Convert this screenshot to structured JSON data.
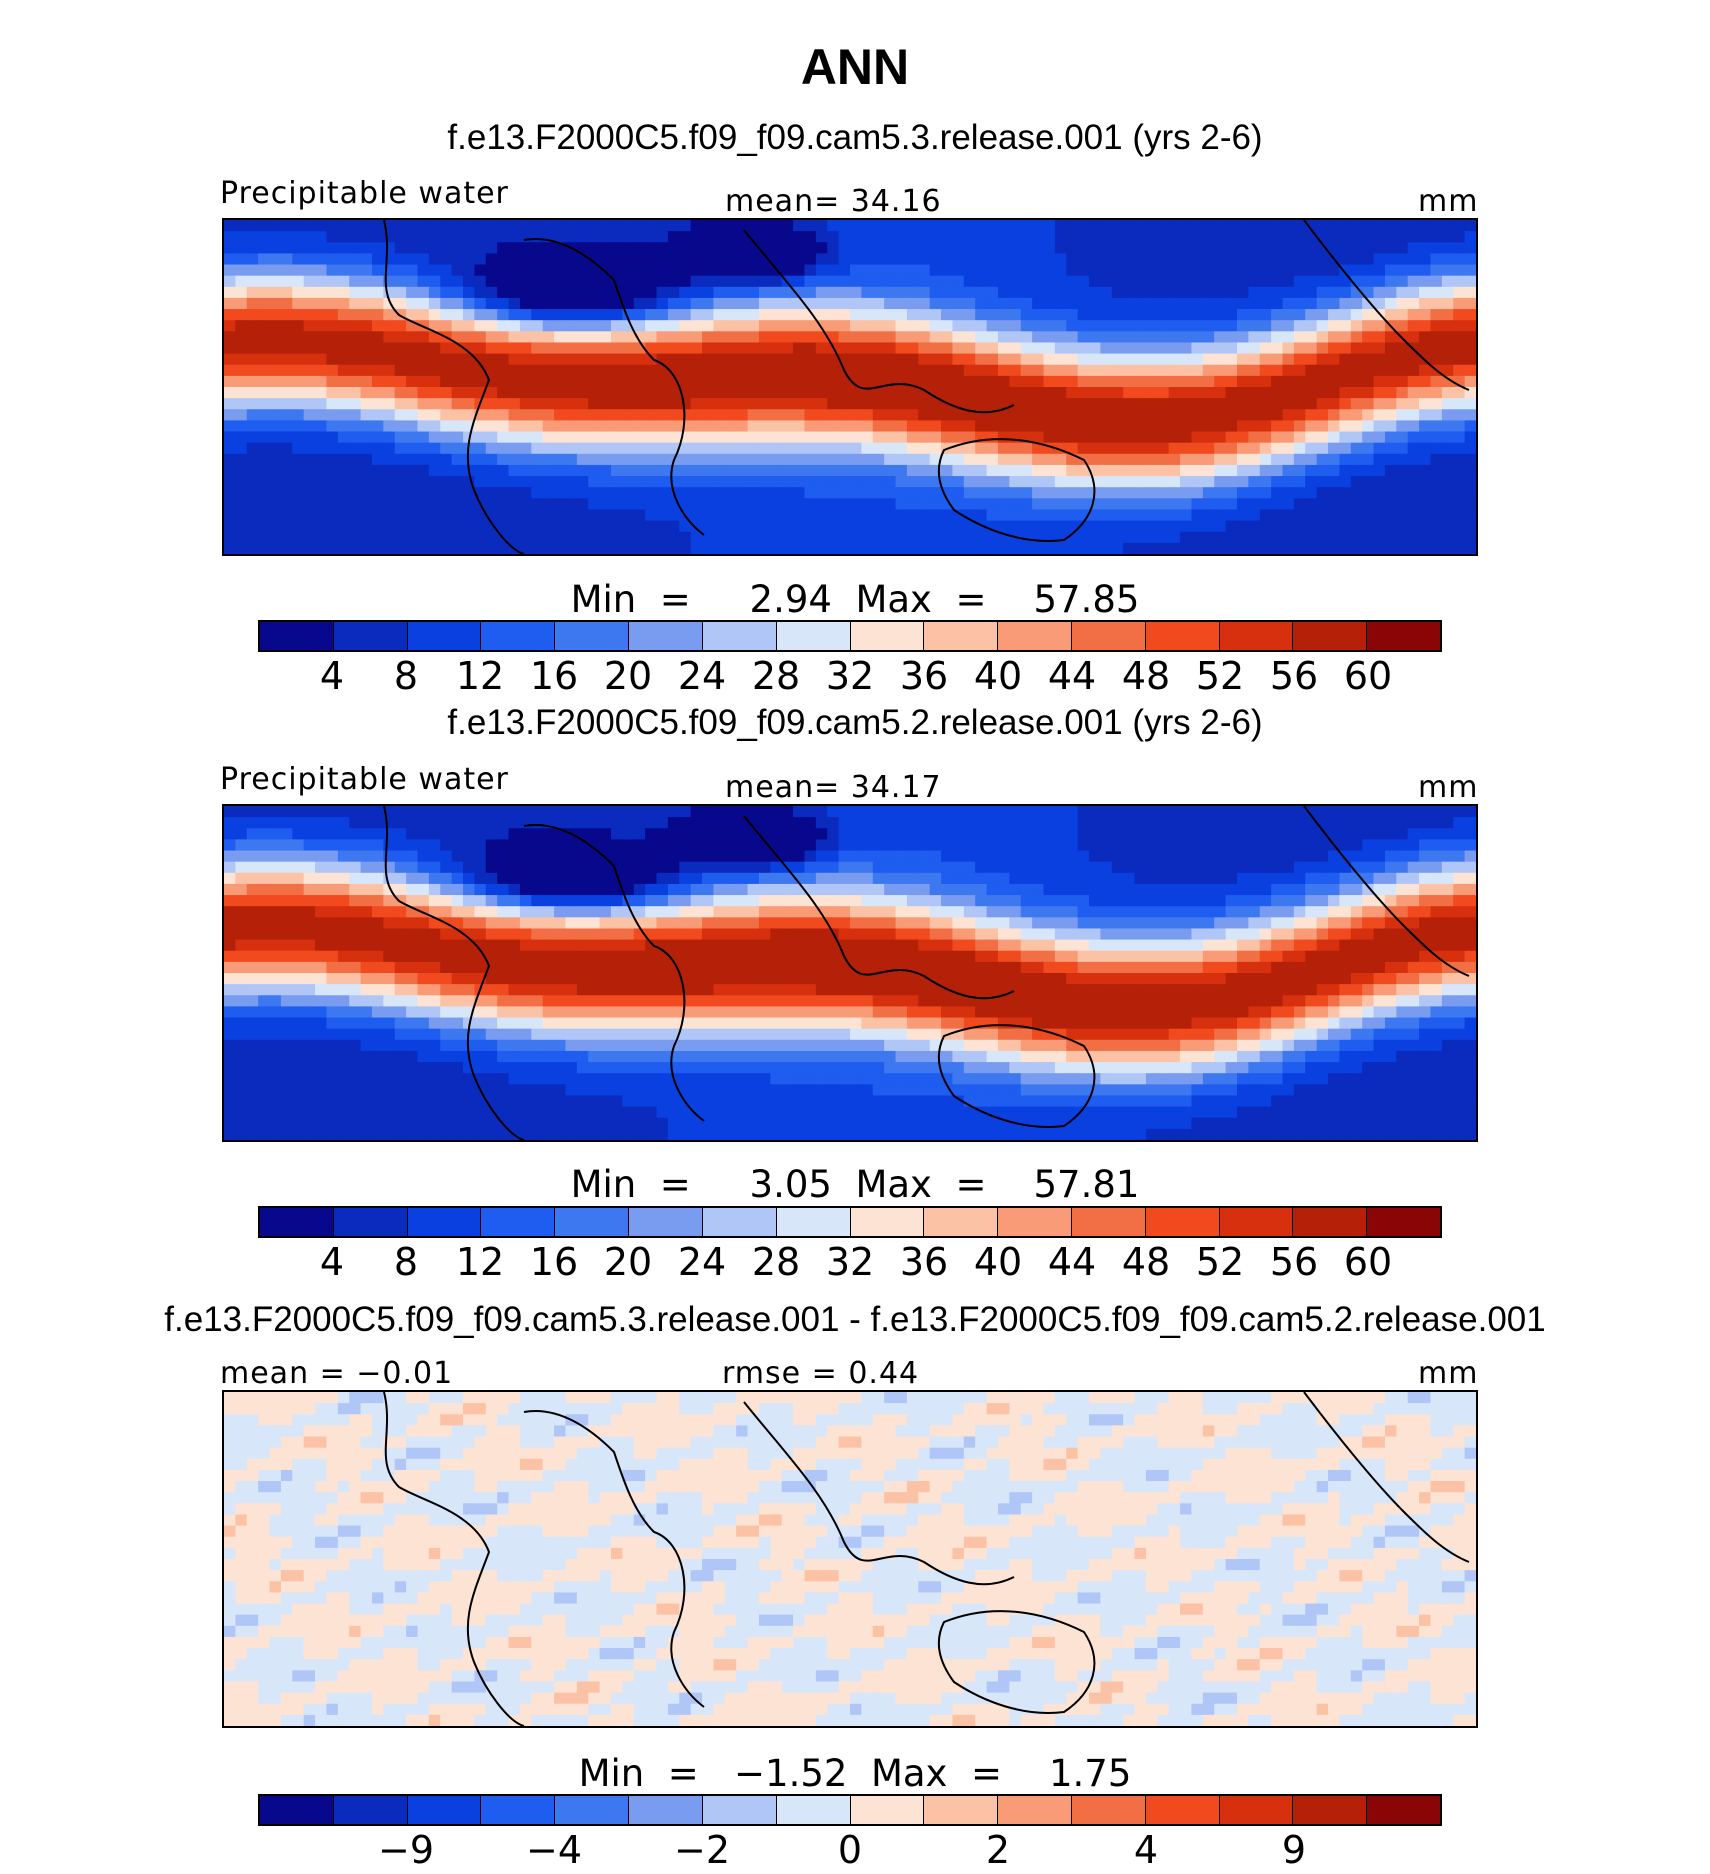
{
  "page": {
    "title": "ANN"
  },
  "colorbar_abs": {
    "colors": [
      "#08088c",
      "#0a2bbe",
      "#0a40e0",
      "#1f5cf0",
      "#3d78f0",
      "#7a9cf0",
      "#b0c6f7",
      "#d8e6fa",
      "#fde3d3",
      "#fbc2a6",
      "#f89b76",
      "#f26f45",
      "#f04a1e",
      "#d7300e",
      "#b42008",
      "#8a0505"
    ],
    "ticks": [
      "4",
      "8",
      "12",
      "16",
      "20",
      "24",
      "28",
      "32",
      "36",
      "40",
      "44",
      "48",
      "52",
      "56",
      "60"
    ]
  },
  "colorbar_diff": {
    "colors": [
      "#08088c",
      "#0a2bbe",
      "#0a40e0",
      "#1f5cf0",
      "#3d78f0",
      "#7a9cf0",
      "#b0c6f7",
      "#d8e6fa",
      "#fde3d3",
      "#fbc2a6",
      "#f89b76",
      "#f26f45",
      "#f04a1e",
      "#d7300e",
      "#b42008",
      "#8a0505"
    ],
    "ticks": [
      {
        "label": "−9",
        "boundary": 2
      },
      {
        "label": "−4",
        "boundary": 4
      },
      {
        "label": "−2",
        "boundary": 6
      },
      {
        "label": "0",
        "boundary": 8
      },
      {
        "label": "2",
        "boundary": 10
      },
      {
        "label": "4",
        "boundary": 12
      },
      {
        "label": "9",
        "boundary": 14
      }
    ]
  },
  "chart_data": [
    {
      "type": "heatmap",
      "title": "f.e13.F2000C5.f09_f09.cam5.3.release.001 (yrs 2-6)",
      "left_label": "Precipitable water",
      "center_label": "mean=  34.16",
      "right_label": "mm",
      "mean": 34.16,
      "min": 2.94,
      "max": 57.85,
      "stats_text": "Min  =     2.94  Max  =    57.85",
      "levels": [
        4,
        8,
        12,
        16,
        20,
        24,
        28,
        32,
        36,
        40,
        44,
        48,
        52,
        56,
        60
      ]
    },
    {
      "type": "heatmap",
      "title": "f.e13.F2000C5.f09_f09.cam5.2.release.001 (yrs 2-6)",
      "left_label": "Precipitable water",
      "center_label": "mean=  34.17",
      "right_label": "mm",
      "mean": 34.17,
      "min": 3.05,
      "max": 57.81,
      "stats_text": "Min  =     3.05  Max  =    57.81",
      "levels": [
        4,
        8,
        12,
        16,
        20,
        24,
        28,
        32,
        36,
        40,
        44,
        48,
        52,
        56,
        60
      ]
    },
    {
      "type": "heatmap",
      "title": "f.e13.F2000C5.f09_f09.cam5.3.release.001 - f.e13.F2000C5.f09_f09.cam5.2.release.001",
      "left_label": "mean =  −0.01",
      "center_label": "rmse =    0.44",
      "right_label": "mm",
      "mean": -0.01,
      "rmse": 0.44,
      "min": -1.52,
      "max": 1.75,
      "stats_text": "Min  =   −1.52  Max  =    1.75",
      "levels": [
        -9,
        -4,
        -2,
        0,
        2,
        4,
        9
      ]
    }
  ]
}
